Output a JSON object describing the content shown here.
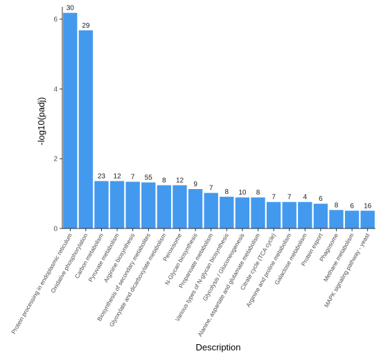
{
  "chart_data": {
    "type": "bar",
    "xlabel": "Description",
    "ylabel": "-log10(padj)",
    "ylim": [
      0,
      6.35
    ],
    "yticks": [
      0,
      2,
      4,
      6
    ],
    "ytick_labels": [
      "0",
      "2",
      "4",
      "6"
    ],
    "grid": false,
    "bar_color": "#4399ee",
    "categories": [
      "Protein processing in endoplasmic reticulum",
      "Oxidative phosphorylation",
      "Carbon metabolism",
      "Pyruvate metabolism",
      "Arginine biosynthesis",
      "Biosynthesis of secondary metabolites",
      "Glyoxylate and dicarboxylate metabolism",
      "Peroxisome",
      "N-Glycan biosynthesis",
      "Propanoate metabolism",
      "Various types of N-glycan biosynthesis",
      "Glycolysis / Gluconeogenesis",
      "Alanine, aspartate and glutamate metabolism",
      "Citrate cycle (TCA cycle)",
      "Arginine and proline metabolism",
      "Galactose metabolism",
      "Protein export",
      "Phagosome",
      "Methane metabolism",
      "MAPK signaling pathway - yeast"
    ],
    "values": [
      6.18,
      5.68,
      1.36,
      1.36,
      1.34,
      1.32,
      1.24,
      1.24,
      1.13,
      1.02,
      0.91,
      0.89,
      0.89,
      0.76,
      0.76,
      0.76,
      0.71,
      0.53,
      0.51,
      0.51
    ],
    "data_labels": [
      "30",
      "29",
      "23",
      "12",
      "7",
      "55",
      "8",
      "12",
      "9",
      "7",
      "8",
      "10",
      "8",
      "7",
      "7",
      "4",
      "6",
      "8",
      "6",
      "16"
    ]
  }
}
